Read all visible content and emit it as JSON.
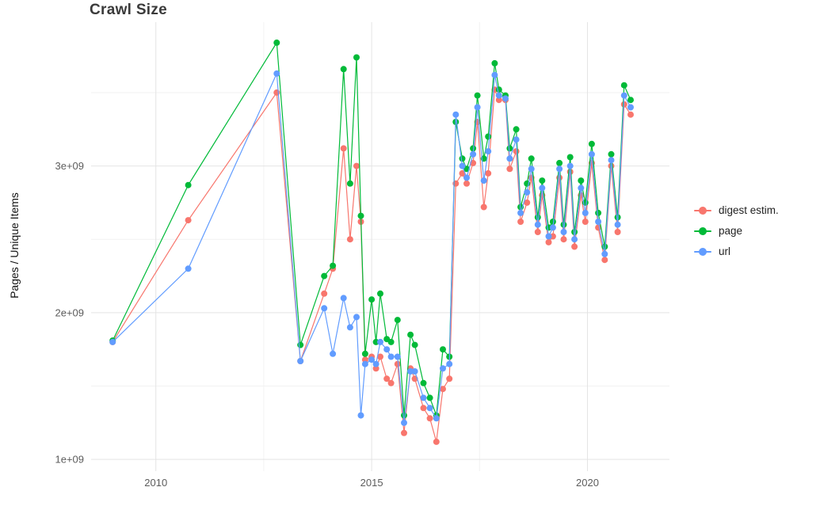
{
  "chart_data": {
    "type": "line",
    "title": "Crawl Size",
    "xlabel": "",
    "ylabel": "Pages / Unique Items",
    "y_unit": "1e9",
    "xlim": [
      2008.5,
      2021.9
    ],
    "ylim": [
      0.92,
      3.98
    ],
    "grid": "on",
    "legend_position": "right",
    "x_ticks": [
      {
        "value": 2010,
        "label": "2010"
      },
      {
        "value": 2015,
        "label": "2015"
      },
      {
        "value": 2020,
        "label": "2020"
      }
    ],
    "y_ticks": [
      {
        "value": 1,
        "label": "1e+09"
      },
      {
        "value": 2,
        "label": "2e+09"
      },
      {
        "value": 3,
        "label": "3e+09"
      }
    ],
    "x_minor": [
      2012.5,
      2017.5
    ],
    "y_minor": [
      1.5,
      2.5,
      3.5
    ],
    "x": [
      2009.0,
      2010.75,
      2012.8,
      2013.35,
      2013.9,
      2014.1,
      2014.35,
      2014.5,
      2014.65,
      2014.75,
      2014.85,
      2015.0,
      2015.1,
      2015.2,
      2015.35,
      2015.45,
      2015.6,
      2015.75,
      2015.9,
      2016.0,
      2016.2,
      2016.35,
      2016.5,
      2016.65,
      2016.8,
      2016.95,
      2017.1,
      2017.2,
      2017.35,
      2017.45,
      2017.6,
      2017.7,
      2017.85,
      2017.95,
      2018.1,
      2018.2,
      2018.35,
      2018.45,
      2018.6,
      2018.7,
      2018.85,
      2018.95,
      2019.1,
      2019.2,
      2019.35,
      2019.45,
      2019.6,
      2019.7,
      2019.85,
      2019.95,
      2020.1,
      2020.25,
      2020.4,
      2020.55,
      2020.7,
      2020.85,
      2021.0
    ],
    "series": [
      {
        "name": "digest estim.",
        "color": "#F8766D",
        "values": [
          1.8,
          2.63,
          3.5,
          1.67,
          2.13,
          2.3,
          3.12,
          2.5,
          3.0,
          2.62,
          1.68,
          1.7,
          1.62,
          1.7,
          1.55,
          1.52,
          1.65,
          1.18,
          1.62,
          1.55,
          1.35,
          1.28,
          1.12,
          1.48,
          1.55,
          2.88,
          2.95,
          2.88,
          3.02,
          3.3,
          2.72,
          2.95,
          3.52,
          3.45,
          3.45,
          2.98,
          3.1,
          2.62,
          2.75,
          2.92,
          2.55,
          2.8,
          2.48,
          2.52,
          2.92,
          2.5,
          2.96,
          2.45,
          2.8,
          2.62,
          3.02,
          2.58,
          2.36,
          3.0,
          2.55,
          3.42,
          3.35
        ]
      },
      {
        "name": "page",
        "color": "#00BA38",
        "values": [
          1.81,
          2.87,
          3.84,
          1.78,
          2.25,
          2.32,
          3.66,
          2.88,
          3.74,
          2.66,
          1.72,
          2.09,
          1.8,
          2.13,
          1.82,
          1.8,
          1.95,
          1.3,
          1.85,
          1.78,
          1.52,
          1.42,
          1.3,
          1.75,
          1.7,
          3.3,
          3.05,
          2.98,
          3.12,
          3.48,
          3.05,
          3.2,
          3.7,
          3.52,
          3.48,
          3.12,
          3.25,
          2.72,
          2.88,
          3.05,
          2.65,
          2.9,
          2.58,
          2.62,
          3.02,
          2.6,
          3.06,
          2.55,
          2.9,
          2.75,
          3.15,
          2.68,
          2.45,
          3.08,
          2.65,
          3.55,
          3.45
        ]
      },
      {
        "name": "url",
        "color": "#619CFF",
        "values": [
          1.8,
          2.3,
          3.63,
          1.67,
          2.03,
          1.72,
          2.1,
          1.9,
          1.97,
          1.3,
          1.65,
          1.68,
          1.65,
          1.8,
          1.75,
          1.7,
          1.7,
          1.25,
          1.6,
          1.6,
          1.42,
          1.35,
          1.28,
          1.62,
          1.65,
          3.35,
          3.0,
          2.92,
          3.08,
          3.4,
          2.9,
          3.1,
          3.62,
          3.48,
          3.46,
          3.05,
          3.18,
          2.68,
          2.82,
          2.98,
          2.6,
          2.85,
          2.52,
          2.58,
          2.98,
          2.55,
          3.0,
          2.5,
          2.85,
          2.68,
          3.08,
          2.62,
          2.4,
          3.04,
          2.6,
          3.48,
          3.4
        ]
      }
    ],
    "style": {
      "grid_major_color": "#e4e4e4",
      "grid_minor_color": "#f2f2f2",
      "tick_label_color": "#5c5c5c",
      "point_radius": 4,
      "line_width": 1.2
    }
  }
}
